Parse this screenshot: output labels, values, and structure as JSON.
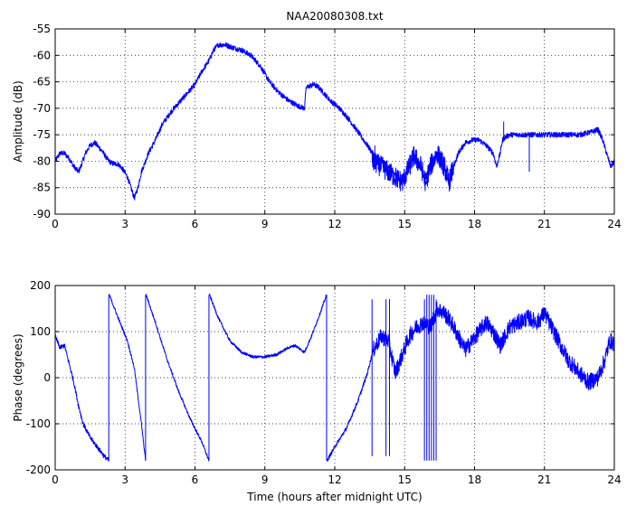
{
  "chart_data": [
    {
      "type": "line",
      "title": "NAA20080308.txt",
      "xlabel": "",
      "ylabel": "Amplitude (dB)",
      "xlim": [
        0,
        24
      ],
      "ylim": [
        -90,
        -55
      ],
      "xticks": [
        0,
        3,
        6,
        9,
        12,
        15,
        18,
        21,
        24
      ],
      "yticks": [
        -90,
        -85,
        -80,
        -75,
        -70,
        -65,
        -60,
        -55
      ],
      "grid": true,
      "color": "#0000ff",
      "series": [
        {
          "noise": 0.5,
          "x": [
            0,
            0.2,
            0.4,
            0.6,
            0.8,
            1.0,
            1.1,
            1.3,
            1.5,
            1.7,
            2.0,
            2.3,
            2.5,
            2.7,
            2.9,
            3.1,
            3.25,
            3.4,
            3.55,
            3.7,
            4.0,
            4.3,
            4.6,
            5.0,
            5.5,
            6.0,
            6.3,
            6.6,
            6.8,
            7.0,
            7.3,
            7.6,
            8.0,
            8.4,
            8.8,
            9.2,
            9.6,
            10.0,
            10.4,
            10.7,
            10.75,
            10.8,
            11.1,
            11.3,
            11.5,
            11.8,
            12.2,
            12.6,
            13.0,
            13.4,
            13.7,
            14.0,
            14.3,
            14.6,
            14.9,
            15.1,
            15.4,
            15.7,
            15.9,
            16.1,
            16.4,
            16.7,
            16.9,
            17.1,
            17.3,
            17.6,
            17.9,
            18.2,
            18.5,
            18.8,
            18.95,
            19.1,
            19.2,
            19.3,
            19.5,
            19.8,
            20.1,
            20.5,
            21.0,
            21.5,
            22.0,
            22.5,
            23.0,
            23.3,
            23.5,
            23.7,
            23.85,
            24.0
          ],
          "y": [
            -80,
            -78.5,
            -78.5,
            -79.5,
            -81,
            -82,
            -81,
            -78.5,
            -77,
            -76.5,
            -78,
            -80,
            -80.5,
            -80.5,
            -81.5,
            -83,
            -85,
            -87,
            -85,
            -82,
            -78.5,
            -76,
            -73,
            -70.5,
            -68,
            -65.5,
            -63,
            -61,
            -59,
            -58,
            -58,
            -58.5,
            -59,
            -60,
            -62,
            -65,
            -67,
            -68.5,
            -69.5,
            -70,
            -67,
            -66,
            -65.5,
            -66,
            -67,
            -68.5,
            -70,
            -72,
            -74.5,
            -77,
            -79,
            -80,
            -81,
            -82.5,
            -84,
            -82,
            -79,
            -81,
            -84.5,
            -81,
            -78.5,
            -81,
            -84.5,
            -81,
            -78.5,
            -76.5,
            -76,
            -76,
            -77,
            -78.5,
            -81,
            -78.5,
            -76,
            -75.5,
            -75,
            -75,
            -75,
            -75,
            -75,
            -75,
            -75,
            -75,
            -74.5,
            -74,
            -76,
            -79,
            -81,
            -80
          ]
        },
        {
          "noise": 2,
          "x": [
            13.6,
            14.0,
            14.3,
            14.6,
            14.9,
            15.1,
            15.4,
            15.7,
            15.9,
            16.1,
            16.4,
            16.7,
            16.9,
            17.1
          ],
          "y": [
            -80,
            -81,
            -82,
            -83,
            -84,
            -82,
            -79,
            -81,
            -84,
            -81,
            -78.5,
            -81,
            -84,
            -81
          ]
        }
      ],
      "spikes": [
        {
          "x": 13.72,
          "y1": -77,
          "y2": -81.5
        },
        {
          "x": 19.25,
          "y1": -75.5,
          "y2": -72.5
        },
        {
          "x": 20.35,
          "y1": -75,
          "y2": -82
        }
      ]
    },
    {
      "type": "line",
      "title": "",
      "xlabel": "Time (hours after midnight UTC)",
      "ylabel": "Phase (degrees)",
      "xlim": [
        0,
        24
      ],
      "ylim": [
        -200,
        200
      ],
      "xticks": [
        0,
        3,
        6,
        9,
        12,
        15,
        18,
        21,
        24
      ],
      "yticks": [
        -200,
        -100,
        0,
        100,
        200
      ],
      "grid": true,
      "color": "#0000ff",
      "series": [
        {
          "noise": 5,
          "x": [
            0,
            0.2,
            0.4,
            0.6,
            0.8,
            1.0,
            1.2,
            1.5,
            1.8,
            2.1,
            2.3
          ],
          "y": [
            90,
            65,
            70,
            30,
            -10,
            -60,
            -100,
            -130,
            -150,
            -170,
            -180
          ]
        },
        {
          "noise": 3,
          "x": [
            2.32,
            2.7,
            3.1,
            3.4,
            3.7,
            3.88
          ],
          "y": [
            180,
            130,
            80,
            20,
            -100,
            -180
          ]
        },
        {
          "noise": 3,
          "x": [
            3.9,
            4.3,
            4.8,
            5.3,
            5.8,
            6.3,
            6.6
          ],
          "y": [
            180,
            120,
            40,
            -30,
            -90,
            -140,
            -180
          ]
        },
        {
          "noise": 3,
          "x": [
            6.62,
            7.0,
            7.5,
            8.0,
            8.5,
            9.0,
            9.5,
            10.0,
            10.3,
            10.7,
            11.0,
            11.3,
            11.65
          ],
          "y": [
            180,
            130,
            80,
            55,
            45,
            45,
            50,
            65,
            70,
            55,
            90,
            130,
            180
          ]
        },
        {
          "noise": 4,
          "x": [
            11.67,
            12.0,
            12.5,
            13.0,
            13.4,
            13.65
          ],
          "y": [
            -180,
            -150,
            -110,
            -50,
            10,
            60
          ]
        },
        {
          "noise": 18,
          "x": [
            13.65,
            14.0,
            14.3,
            14.6,
            14.9,
            15.2,
            15.5,
            15.8,
            16.1,
            16.4,
            16.7,
            17.0,
            17.3,
            17.6,
            17.9,
            18.2,
            18.5,
            18.8,
            19.1,
            19.5,
            19.9,
            20.3,
            20.7,
            21.0,
            21.2,
            21.6,
            22.0,
            22.5,
            22.9,
            23.3,
            23.6,
            23.8,
            24.0
          ],
          "y": [
            60,
            90,
            80,
            10,
            50,
            90,
            110,
            120,
            110,
            150,
            140,
            120,
            90,
            60,
            80,
            100,
            120,
            100,
            70,
            110,
            120,
            130,
            120,
            140,
            120,
            80,
            40,
            10,
            -10,
            0,
            40,
            80,
            75
          ]
        }
      ],
      "spikes": [
        {
          "x": 2.3,
          "y1": -180,
          "y2": 180
        },
        {
          "x": 3.88,
          "y1": -180,
          "y2": 180
        },
        {
          "x": 6.6,
          "y1": -180,
          "y2": 180
        },
        {
          "x": 11.65,
          "y1": 180,
          "y2": -180
        },
        {
          "x": 13.6,
          "y1": 170,
          "y2": -170
        },
        {
          "x": 14.2,
          "y1": 170,
          "y2": -170
        },
        {
          "x": 14.35,
          "y1": 170,
          "y2": -170
        },
        {
          "x": 15.85,
          "y1": 170,
          "y2": -180
        },
        {
          "x": 15.95,
          "y1": -180,
          "y2": 180
        },
        {
          "x": 16.05,
          "y1": 180,
          "y2": -180
        },
        {
          "x": 16.15,
          "y1": -180,
          "y2": 180
        },
        {
          "x": 16.25,
          "y1": 180,
          "y2": -180
        },
        {
          "x": 16.35,
          "y1": -180,
          "y2": 170
        }
      ]
    }
  ]
}
